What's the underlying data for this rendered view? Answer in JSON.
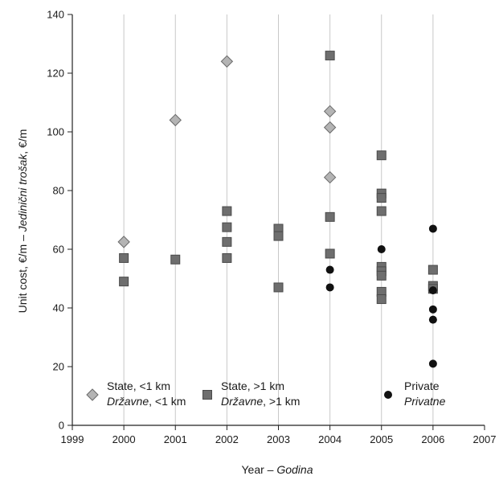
{
  "chart_data": {
    "type": "scatter",
    "xlabel_main": "Year – ",
    "xlabel_italic": "Godina",
    "ylabel_main": "Unit cost, €/m – ",
    "ylabel_italic": "Jedinični trošak",
    "ylabel_end": ", €/m",
    "xlim": [
      1999,
      2007
    ],
    "ylim": [
      0,
      140
    ],
    "x_ticks": [
      "1999",
      "2000",
      "2001",
      "2002",
      "2003",
      "2004",
      "2005",
      "2006",
      "2007"
    ],
    "y_ticks": [
      "0",
      "20",
      "40",
      "60",
      "80",
      "100",
      "120",
      "140"
    ],
    "grid": "vertical",
    "legend_position": "bottom",
    "series": [
      {
        "name": "State, <1 km",
        "name_alt": "Državne",
        "name_alt_suffix": ", <1 km",
        "marker": "diamond",
        "color": "#b4b4b4",
        "points": [
          [
            2000,
            62.5
          ],
          [
            2001,
            104
          ],
          [
            2002,
            124
          ],
          [
            2004,
            107
          ],
          [
            2004,
            101.5
          ],
          [
            2004,
            84.5
          ]
        ]
      },
      {
        "name": "State, >1 km",
        "name_alt": "Državne",
        "name_alt_suffix": ", >1 km",
        "marker": "square",
        "color": "#6e6e6e",
        "points": [
          [
            2000,
            57
          ],
          [
            2000,
            49
          ],
          [
            2001,
            56.5
          ],
          [
            2002,
            73
          ],
          [
            2002,
            67.5
          ],
          [
            2002,
            62.5
          ],
          [
            2002,
            57
          ],
          [
            2003,
            67
          ],
          [
            2003,
            64.5
          ],
          [
            2003,
            47
          ],
          [
            2004,
            126
          ],
          [
            2004,
            71
          ],
          [
            2004,
            58.5
          ],
          [
            2005,
            92
          ],
          [
            2005,
            79
          ],
          [
            2005,
            77.5
          ],
          [
            2005,
            73
          ],
          [
            2005,
            54
          ],
          [
            2005,
            52.5
          ],
          [
            2005,
            51
          ],
          [
            2005,
            45.5
          ],
          [
            2005,
            43
          ],
          [
            2006,
            53
          ],
          [
            2006,
            47.5
          ],
          [
            2006,
            46.5
          ]
        ]
      },
      {
        "name": "Private",
        "name_alt": "Privatne",
        "name_alt_suffix": "",
        "marker": "circle",
        "color": "#111111",
        "points": [
          [
            2004,
            53
          ],
          [
            2004,
            47
          ],
          [
            2005,
            60
          ],
          [
            2006,
            67
          ],
          [
            2006,
            46
          ],
          [
            2006,
            39.5
          ],
          [
            2006,
            36
          ],
          [
            2006,
            21
          ]
        ]
      }
    ]
  }
}
